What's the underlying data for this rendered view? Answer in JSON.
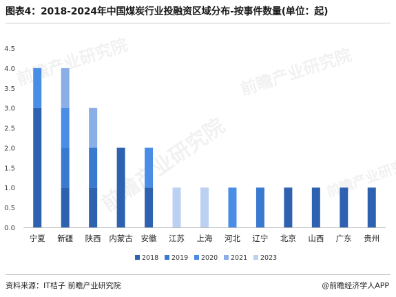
{
  "header": {
    "title": "图表4：2018-2024年中国煤炭行业投融资区域分布-按事件数量(单位：起)"
  },
  "footer": {
    "source": "资料来源：IT桔子 前瞻产业研究院",
    "brand": "@前瞻经济学人APP"
  },
  "watermark": {
    "text": "前瞻产业研究院"
  },
  "chart_data": {
    "type": "bar",
    "stacked": true,
    "categories": [
      "宁夏",
      "新疆",
      "陕西",
      "内蒙古",
      "安徽",
      "江苏",
      "上海",
      "河北",
      "辽宁",
      "北京",
      "山西",
      "广东",
      "贵州"
    ],
    "series": [
      {
        "name": "2018",
        "color": "#2e62b0",
        "values": [
          3,
          1,
          1,
          2,
          1,
          0,
          0,
          0,
          0,
          1,
          1,
          1,
          1
        ]
      },
      {
        "name": "2019",
        "color": "#3a79d0",
        "values": [
          0,
          1,
          1,
          0,
          0,
          0,
          0,
          0,
          1,
          0,
          0,
          0,
          0
        ]
      },
      {
        "name": "2020",
        "color": "#4a8de6",
        "values": [
          1,
          1,
          0,
          0,
          1,
          0,
          0,
          1,
          0,
          0,
          0,
          0,
          0
        ]
      },
      {
        "name": "2021",
        "color": "#8aaee6",
        "values": [
          0,
          1,
          1,
          0,
          0,
          0,
          0,
          0,
          0,
          0,
          0,
          0,
          0
        ]
      },
      {
        "name": "2023",
        "color": "#bcd0f2",
        "values": [
          0,
          0,
          0,
          0,
          0,
          1,
          1,
          0,
          0,
          0,
          0,
          0,
          0
        ]
      }
    ],
    "yticks": [
      "0.0",
      "0.5",
      "1.0",
      "1.5",
      "2.0",
      "2.5",
      "3.0",
      "3.5",
      "4.0",
      "4.5"
    ],
    "ylim": [
      0,
      4.5
    ],
    "grid": false,
    "legend_position": "bottom"
  }
}
